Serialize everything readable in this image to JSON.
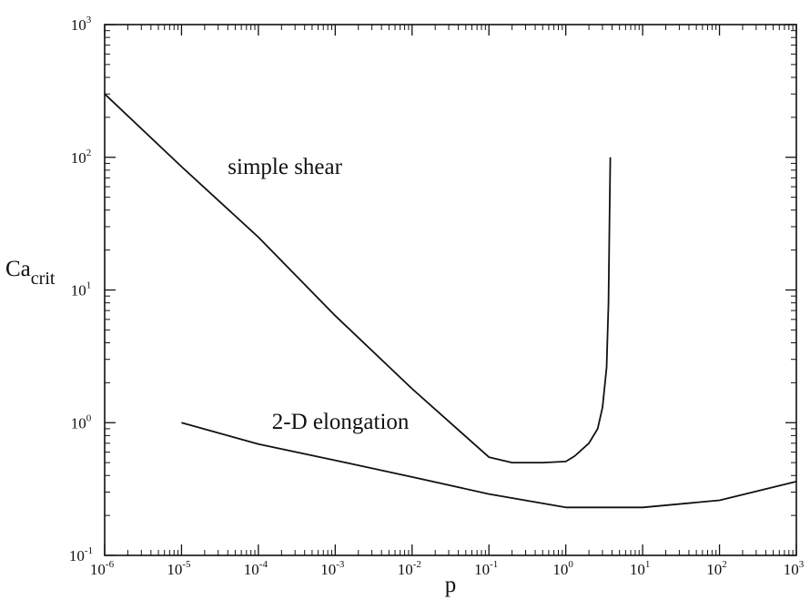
{
  "chart_data": {
    "type": "line",
    "title": "",
    "xlabel": "p",
    "ylabel": {
      "base": "Ca",
      "sub": "crit"
    },
    "x_scale": "log",
    "y_scale": "log",
    "xlim": [
      1e-06,
      1000
    ],
    "ylim": [
      0.1,
      1000
    ],
    "grid": false,
    "legend": "none",
    "x_ticks": [
      {
        "value": 1e-06,
        "base": "10",
        "exp": "-6"
      },
      {
        "value": 1e-05,
        "base": "10",
        "exp": "-5"
      },
      {
        "value": 0.0001,
        "base": "10",
        "exp": "-4"
      },
      {
        "value": 0.001,
        "base": "10",
        "exp": "-3"
      },
      {
        "value": 0.01,
        "base": "10",
        "exp": "-2"
      },
      {
        "value": 0.1,
        "base": "10",
        "exp": "-1"
      },
      {
        "value": 1,
        "base": "10",
        "exp": "0"
      },
      {
        "value": 10,
        "base": "10",
        "exp": "1"
      },
      {
        "value": 100,
        "base": "10",
        "exp": "2"
      },
      {
        "value": 1000,
        "base": "10",
        "exp": "3"
      }
    ],
    "y_ticks": [
      {
        "value": 0.1,
        "base": "10",
        "exp": "-1"
      },
      {
        "value": 1,
        "base": "10",
        "exp": "0"
      },
      {
        "value": 10,
        "base": "10",
        "exp": "1"
      },
      {
        "value": 100,
        "base": "10",
        "exp": "2"
      },
      {
        "value": 1000,
        "base": "10",
        "exp": "3"
      }
    ],
    "series": [
      {
        "x": [
          1e-06,
          1e-05,
          0.0001,
          0.001,
          0.01,
          0.1,
          0.2,
          0.5,
          1.0,
          1.3,
          2.0,
          2.6,
          3.0,
          3.4,
          3.6,
          3.7,
          3.8
        ],
        "y": [
          300,
          85,
          25,
          6.4,
          1.8,
          0.55,
          0.5,
          0.5,
          0.51,
          0.56,
          0.7,
          0.9,
          1.3,
          2.6,
          8,
          30,
          100
        ]
      },
      {
        "x": [
          1e-05,
          0.0001,
          0.001,
          0.01,
          0.1,
          1,
          10,
          100,
          1000
        ],
        "y": [
          1.0,
          0.69,
          0.52,
          0.39,
          0.29,
          0.23,
          0.23,
          0.26,
          0.36
        ]
      }
    ],
    "annotations": [
      {
        "text": "simple shear",
        "x": 4e-05,
        "y": 75
      },
      {
        "text": "2-D elongation",
        "x": 0.00015,
        "y": 0.9
      }
    ]
  }
}
